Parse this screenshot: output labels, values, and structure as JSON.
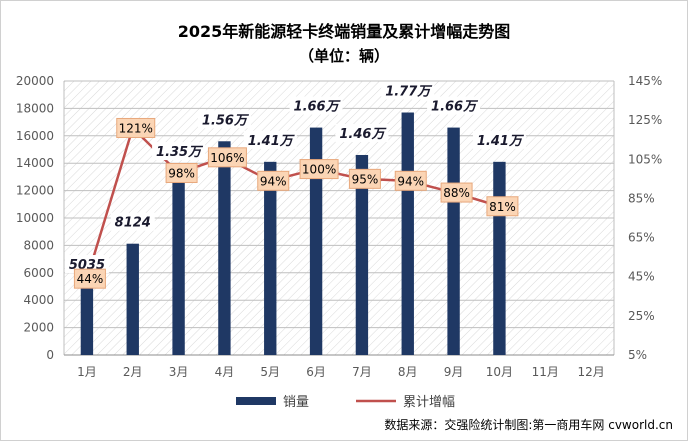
{
  "chart_data": {
    "type": "bar+line",
    "title": "2025年新能源轻卡终端销量及累计增幅走势图",
    "subtitle": "（单位：辆）",
    "categories": [
      "1月",
      "2月",
      "3月",
      "4月",
      "5月",
      "6月",
      "7月",
      "8月",
      "9月",
      "10月",
      "11月",
      "12月"
    ],
    "series": [
      {
        "name": "销量",
        "type": "bar",
        "axis": "left",
        "values": [
          5035,
          8124,
          13500,
          15600,
          14100,
          16600,
          14600,
          17700,
          16600,
          14100,
          null,
          null
        ],
        "labels": [
          "5035",
          "8124",
          "1.35万",
          "1.56万",
          "1.41万",
          "1.66万",
          "1.46万",
          "1.77万",
          "1.66万",
          "1.41万",
          "",
          ""
        ],
        "color": "#1f3864"
      },
      {
        "name": "累计增幅",
        "type": "line",
        "axis": "right",
        "values": [
          44,
          121,
          98,
          106,
          94,
          100,
          95,
          94,
          88,
          81,
          null,
          null
        ],
        "labels": [
          "44%",
          "121%",
          "98%",
          "106%",
          "94%",
          "100%",
          "95%",
          "94%",
          "88%",
          "81%",
          "",
          ""
        ],
        "color": "#c0504d"
      }
    ],
    "y_left": {
      "min": 0,
      "max": 20000,
      "step": 2000,
      "ticks": [
        "0",
        "2000",
        "4000",
        "6000",
        "8000",
        "10000",
        "12000",
        "14000",
        "16000",
        "18000",
        "20000"
      ]
    },
    "y_right": {
      "min": 5,
      "max": 145,
      "step": 20,
      "ticks": [
        "5%",
        "25%",
        "45%",
        "65%",
        "85%",
        "105%",
        "125%",
        "145%"
      ]
    },
    "legend": [
      "销量",
      "累计增幅"
    ],
    "legend_position": "bottom",
    "source": "数据来源：交强险统计制图:第一商用车网 cvworld.cn",
    "colors": {
      "bar": "#1f3864",
      "line": "#c0504d",
      "label_box": "#fbd5b5",
      "label_border": "#e8a87c",
      "grid": "#bfbfbf"
    }
  }
}
